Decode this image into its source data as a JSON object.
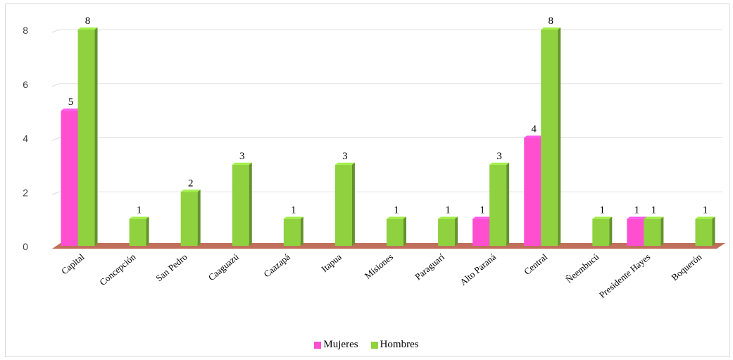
{
  "chart_data": {
    "type": "bar",
    "categories": [
      "Capital",
      "Concepción",
      "San Pedro",
      "Caaguazú",
      "Caazapá",
      "Itapua",
      "Misiones",
      "Paraguarí",
      "Alto Paraná",
      "Central",
      "Ñeembucú",
      "Presidente Hayes",
      "Boquerón"
    ],
    "series": [
      {
        "name": "Mujeres",
        "color": "#ff4fd0",
        "values": [
          5,
          0,
          0,
          0,
          0,
          0,
          0,
          0,
          1,
          4,
          0,
          1,
          0
        ],
        "labels": [
          "5",
          "",
          "",
          "",
          "",
          "",
          "",
          "",
          "1",
          "4",
          "",
          "1",
          ""
        ]
      },
      {
        "name": "Hombres",
        "color": "#8fd13f",
        "values": [
          8,
          1,
          2,
          3,
          1,
          3,
          1,
          1,
          3,
          8,
          1,
          1,
          1
        ],
        "labels": [
          "8",
          "1",
          "2",
          "3",
          "1",
          "3",
          "1",
          "1",
          "3",
          "8",
          "1",
          "1",
          "1"
        ]
      }
    ],
    "yticks": [
      "0",
      "2",
      "4",
      "6",
      "8"
    ],
    "ylim": [
      0,
      8
    ],
    "grid": true,
    "floor_color": "#c0705a",
    "legend_position": "bottom"
  }
}
